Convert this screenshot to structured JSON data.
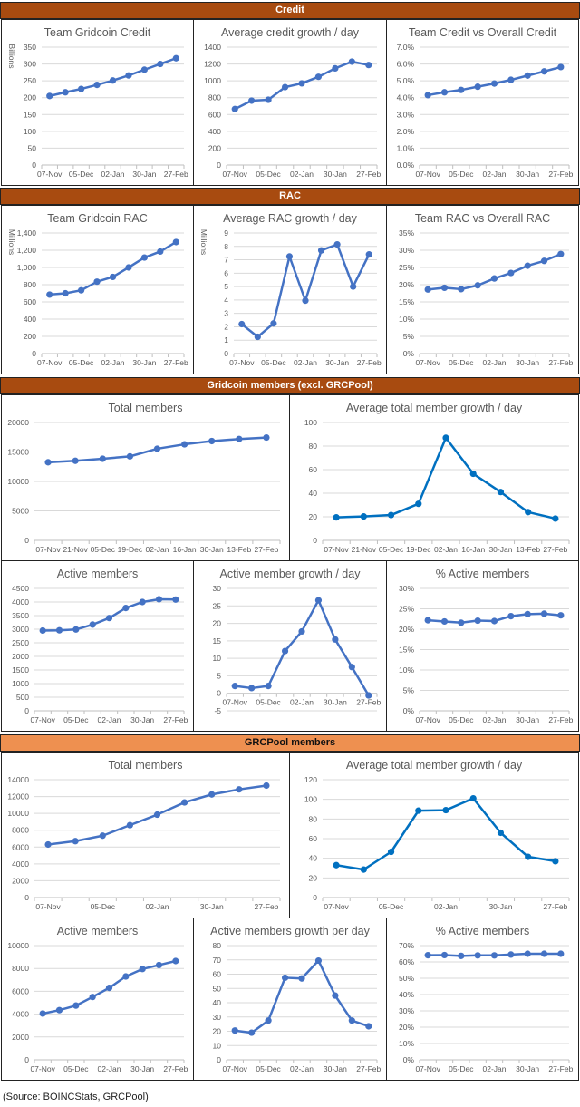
{
  "sections": [
    {
      "title": "Credit",
      "style": "dark"
    },
    {
      "title": "RAC",
      "style": "dark"
    },
    {
      "title": "Gridcoin members (excl. GRCPool)",
      "style": "dark"
    },
    {
      "title": "GRCPool members",
      "style": "light"
    }
  ],
  "colors": {
    "line": "#4472c4",
    "line_alt": "#0070c0",
    "header_dark": "#a84b10",
    "header_light": "#ee9050"
  },
  "footer": {
    "source": "(Source: BOINCStats, GRCPool)"
  },
  "chart_data": [
    {
      "id": "team-gridcoin-credit",
      "section": "Credit",
      "type": "line",
      "title": "Team Gridcoin Credit",
      "ylabel": "Billions",
      "xlabel": "",
      "ylim": [
        0,
        350
      ],
      "yticks": [
        0,
        50,
        100,
        150,
        200,
        250,
        300,
        350
      ],
      "yformat": "int",
      "x_tick_labels": [
        "07-Nov",
        "05-Dec",
        "02-Jan",
        "30-Jan",
        "27-Feb"
      ],
      "n_points": 9,
      "label_every": 2,
      "grid": true,
      "legend": "none",
      "values": [
        205,
        216,
        226,
        238,
        251,
        266,
        283,
        300,
        317
      ]
    },
    {
      "id": "avg-credit-growth",
      "section": "Credit",
      "type": "line",
      "title": "Average credit growth / day",
      "ylabel": "",
      "xlabel": "",
      "ylim": [
        0,
        1400
      ],
      "yticks": [
        0,
        200,
        400,
        600,
        800,
        1000,
        1200,
        1400
      ],
      "yformat": "int",
      "x_tick_labels": [
        "07-Nov",
        "05-Dec",
        "02-Jan",
        "30-Jan",
        "27-Feb"
      ],
      "n_points": 9,
      "label_every": 2,
      "grid": true,
      "legend": "none",
      "values": [
        665,
        765,
        775,
        925,
        970,
        1048,
        1148,
        1228,
        1188
      ]
    },
    {
      "id": "team-vs-overall-credit",
      "section": "Credit",
      "type": "line",
      "title": "Team Credit vs Overall Credit",
      "ylabel": "",
      "xlabel": "",
      "ylim": [
        0,
        0.07
      ],
      "yticks": [
        0,
        0.01,
        0.02,
        0.03,
        0.04,
        0.05,
        0.06,
        0.07
      ],
      "yformat": "pct1",
      "x_tick_labels": [
        "07-Nov",
        "05-Dec",
        "02-Jan",
        "30-Jan",
        "27-Feb"
      ],
      "n_points": 9,
      "label_every": 2,
      "grid": true,
      "legend": "none",
      "values": [
        0.0415,
        0.0432,
        0.0446,
        0.0465,
        0.0484,
        0.0506,
        0.0531,
        0.0556,
        0.0582
      ]
    },
    {
      "id": "team-gridcoin-rac",
      "section": "RAC",
      "type": "line",
      "title": "Team Gridcoin RAC",
      "ylabel": "Millions",
      "xlabel": "",
      "ylim": [
        0,
        1400
      ],
      "yticks": [
        0,
        200,
        400,
        600,
        800,
        1000,
        1200,
        1400
      ],
      "yformat": "comma",
      "x_tick_labels": [
        "07-Nov",
        "05-Dec",
        "02-Jan",
        "30-Jan",
        "27-Feb"
      ],
      "n_points": 9,
      "label_every": 2,
      "grid": true,
      "legend": "none",
      "values": [
        685,
        700,
        735,
        835,
        890,
        1000,
        1115,
        1185,
        1295
      ]
    },
    {
      "id": "avg-rac-growth",
      "section": "RAC",
      "type": "line",
      "title": "Average RAC growth / day",
      "ylabel": "Millions",
      "xlabel": "",
      "ylim": [
        0,
        9
      ],
      "yticks": [
        0,
        1,
        2,
        3,
        4,
        5,
        6,
        7,
        8,
        9
      ],
      "yformat": "int",
      "x_tick_labels": [
        "07-Nov",
        "05-Dec",
        "02-Jan",
        "30-Jan",
        "27-Feb"
      ],
      "n_points": 9,
      "label_every": 2,
      "grid": true,
      "legend": "none",
      "values": [
        2.2,
        1.25,
        2.25,
        7.25,
        3.95,
        7.7,
        8.15,
        5.0,
        7.4
      ]
    },
    {
      "id": "team-vs-overall-rac",
      "section": "RAC",
      "type": "line",
      "title": "Team RAC vs Overall RAC",
      "ylabel": "",
      "xlabel": "",
      "ylim": [
        0,
        0.35
      ],
      "yticks": [
        0,
        0.05,
        0.1,
        0.15,
        0.2,
        0.25,
        0.3,
        0.35
      ],
      "yformat": "pct0",
      "x_tick_labels": [
        "07-Nov",
        "05-Dec",
        "02-Jan",
        "30-Jan",
        "27-Feb"
      ],
      "n_points": 9,
      "label_every": 2,
      "grid": true,
      "legend": "none",
      "values": [
        0.186,
        0.191,
        0.187,
        0.198,
        0.218,
        0.234,
        0.255,
        0.269,
        0.289
      ]
    },
    {
      "id": "gridcoin-total-members",
      "section": "Gridcoin members (excl. GRCPool)",
      "type": "line",
      "title": "Total members",
      "ylabel": "",
      "xlabel": "",
      "ylim": [
        0,
        20000
      ],
      "yticks": [
        0,
        5000,
        10000,
        15000,
        20000
      ],
      "yformat": "int",
      "x_tick_labels": [
        "07-Nov",
        "21-Nov",
        "05-Dec",
        "19-Dec",
        "02-Jan",
        "16-Jan",
        "30-Jan",
        "13-Feb",
        "27-Feb"
      ],
      "n_points": 9,
      "label_every": 1,
      "grid": true,
      "legend": "none",
      "values": [
        13250,
        13500,
        13850,
        14250,
        15550,
        16300,
        16850,
        17200,
        17450
      ]
    },
    {
      "id": "gridcoin-avg-total-member-growth",
      "section": "Gridcoin members (excl. GRCPool)",
      "type": "line",
      "title": "Average total member growth / day",
      "ylabel": "",
      "xlabel": "",
      "ylim": [
        0,
        100
      ],
      "yticks": [
        0,
        20,
        40,
        60,
        80,
        100
      ],
      "yformat": "int",
      "x_tick_labels": [
        "07-Nov",
        "21-Nov",
        "05-Dec",
        "19-Dec",
        "02-Jan",
        "16-Jan",
        "30-Jan",
        "13-Feb",
        "27-Feb"
      ],
      "n_points": 9,
      "label_every": 1,
      "grid": true,
      "legend": "none",
      "alt_color": true,
      "values": [
        19.5,
        20.3,
        21.5,
        31,
        87,
        56.5,
        41,
        24,
        18.5
      ]
    },
    {
      "id": "gridcoin-active-members",
      "section": "Gridcoin members (excl. GRCPool)",
      "type": "line",
      "title": "Active members",
      "ylabel": "",
      "xlabel": "",
      "ylim": [
        0,
        4500
      ],
      "yticks": [
        0,
        500,
        1000,
        1500,
        2000,
        2500,
        3000,
        3500,
        4000,
        4500
      ],
      "yformat": "int",
      "x_tick_labels": [
        "07-Nov",
        "05-Dec",
        "02-Jan",
        "30-Jan",
        "27-Feb"
      ],
      "n_points": 9,
      "label_every": 2,
      "grid": true,
      "legend": "none",
      "values": [
        2950,
        2960,
        2990,
        3170,
        3410,
        3780,
        4000,
        4100,
        4090
      ]
    },
    {
      "id": "gridcoin-active-member-growth",
      "section": "Gridcoin members (excl. GRCPool)",
      "type": "line",
      "title": "Active member growth / day",
      "ylabel": "",
      "xlabel": "",
      "ylim": [
        -5,
        30
      ],
      "yticks": [
        -5,
        0,
        5,
        10,
        15,
        20,
        25,
        30
      ],
      "yformat": "int",
      "x_tick_labels": [
        "07-Nov",
        "05-Dec",
        "02-Jan",
        "30-Jan",
        "27-Feb"
      ],
      "n_points": 9,
      "label_every": 2,
      "xaxis_at_zero": true,
      "grid": true,
      "legend": "none",
      "values": [
        2.1,
        1.5,
        2.1,
        12.1,
        17.7,
        26.6,
        15.4,
        7.5,
        -0.6
      ]
    },
    {
      "id": "gridcoin-pct-active-members",
      "section": "Gridcoin members (excl. GRCPool)",
      "type": "line",
      "title": "% Active members",
      "ylabel": "",
      "xlabel": "",
      "ylim": [
        0,
        0.3
      ],
      "yticks": [
        0,
        0.05,
        0.1,
        0.15,
        0.2,
        0.25,
        0.3
      ],
      "yformat": "pct0",
      "x_tick_labels": [
        "07-Nov",
        "05-Dec",
        "02-Jan",
        "30-Jan",
        "27-Feb"
      ],
      "n_points": 9,
      "label_every": 2,
      "grid": true,
      "legend": "none",
      "values": [
        0.222,
        0.219,
        0.216,
        0.221,
        0.22,
        0.232,
        0.237,
        0.238,
        0.234
      ]
    },
    {
      "id": "grcpool-total-members",
      "section": "GRCPool members",
      "type": "line",
      "title": "Total members",
      "ylabel": "",
      "xlabel": "",
      "ylim": [
        0,
        14000
      ],
      "yticks": [
        0,
        2000,
        4000,
        6000,
        8000,
        10000,
        12000,
        14000
      ],
      "yformat": "int",
      "x_tick_labels": [
        "07-Nov",
        "05-Dec",
        "02-Jan",
        "30-Jan",
        "27-Feb"
      ],
      "n_points": 9,
      "label_every": 2,
      "grid": true,
      "legend": "none",
      "values": [
        6300,
        6700,
        7350,
        8600,
        9850,
        11300,
        12250,
        12850,
        13300
      ]
    },
    {
      "id": "grcpool-avg-total-member-growth",
      "section": "GRCPool members",
      "type": "line",
      "title": "Average total member growth / day",
      "ylabel": "",
      "xlabel": "",
      "ylim": [
        0,
        120
      ],
      "yticks": [
        0,
        20,
        40,
        60,
        80,
        100,
        120
      ],
      "yformat": "int",
      "x_tick_labels": [
        "07-Nov",
        "05-Dec",
        "02-Jan",
        "30-Jan",
        "27-Feb"
      ],
      "n_points": 9,
      "label_every": 2,
      "grid": true,
      "legend": "none",
      "alt_color": true,
      "values": [
        33,
        28.5,
        46.5,
        88.5,
        89,
        101,
        66,
        41.5,
        37
      ]
    },
    {
      "id": "grcpool-active-members",
      "section": "GRCPool members",
      "type": "line",
      "title": "Active members",
      "ylabel": "",
      "xlabel": "",
      "ylim": [
        0,
        10000
      ],
      "yticks": [
        0,
        2000,
        4000,
        6000,
        8000,
        10000
      ],
      "yformat": "int",
      "x_tick_labels": [
        "07-Nov",
        "05-Dec",
        "02-Jan",
        "30-Jan",
        "27-Feb"
      ],
      "n_points": 9,
      "label_every": 2,
      "grid": true,
      "legend": "none",
      "values": [
        4050,
        4350,
        4750,
        5500,
        6300,
        7300,
        7950,
        8300,
        8650
      ]
    },
    {
      "id": "grcpool-active-members-growth",
      "section": "GRCPool members",
      "type": "line",
      "title": "Active members growth per day",
      "ylabel": "",
      "xlabel": "",
      "ylim": [
        0,
        80
      ],
      "yticks": [
        0,
        10,
        20,
        30,
        40,
        50,
        60,
        70,
        80
      ],
      "yformat": "int",
      "x_tick_labels": [
        "07-Nov",
        "05-Dec",
        "02-Jan",
        "30-Jan",
        "27-Feb"
      ],
      "n_points": 9,
      "label_every": 2,
      "grid": true,
      "legend": "none",
      "values": [
        20.5,
        19,
        27.5,
        57.5,
        57,
        69.5,
        45,
        27.5,
        23.5
      ]
    },
    {
      "id": "grcpool-pct-active-members",
      "section": "GRCPool members",
      "type": "line",
      "title": "% Active members",
      "ylabel": "",
      "xlabel": "",
      "ylim": [
        0,
        0.7
      ],
      "yticks": [
        0,
        0.1,
        0.2,
        0.3,
        0.4,
        0.5,
        0.6,
        0.7
      ],
      "yformat": "pct0",
      "x_tick_labels": [
        "07-Nov",
        "05-Dec",
        "02-Jan",
        "30-Jan",
        "27-Feb"
      ],
      "n_points": 9,
      "label_every": 2,
      "grid": true,
      "legend": "none",
      "values": [
        0.641,
        0.642,
        0.637,
        0.64,
        0.64,
        0.645,
        0.65,
        0.65,
        0.65
      ]
    }
  ]
}
